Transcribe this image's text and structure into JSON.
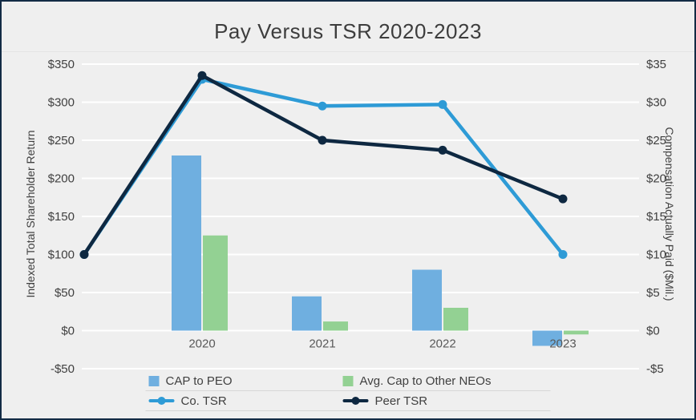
{
  "title": "Pay Versus TSR 2020-2023",
  "left_axis": {
    "label": "Indexed Total Shareholder Return",
    "ticks": [
      "$350",
      "$300",
      "$250",
      "$200",
      "$150",
      "$100",
      "$50",
      "$0",
      "-$50"
    ],
    "min": -50,
    "max": 350,
    "step": 50
  },
  "right_axis": {
    "label": "Compensation Actually Paid ($Mil.)",
    "ticks": [
      "$35",
      "$30",
      "$25",
      "$20",
      "$15",
      "$10",
      "$5",
      "$0",
      "-$5"
    ],
    "min": -5,
    "max": 35,
    "step": 5
  },
  "chart_data": {
    "type": "combo",
    "categories": [
      "2020",
      "2021",
      "2022",
      "2023"
    ],
    "bar_series": [
      {
        "name": "CAP to PEO",
        "axis": "right",
        "color": "#6fafe0",
        "values": [
          23,
          4.5,
          8,
          -2
        ]
      },
      {
        "name": "Avg. Cap to Other NEOs",
        "axis": "right",
        "color": "#93d193",
        "values": [
          12.5,
          1.2,
          3,
          -0.5
        ]
      }
    ],
    "line_series": [
      {
        "name": "Co. TSR",
        "axis": "left",
        "color": "#2e9bd6",
        "baseline_value": 100,
        "values": [
          330,
          295,
          297,
          100
        ]
      },
      {
        "name": "Peer TSR",
        "axis": "left",
        "color": "#0e2841",
        "baseline_value": 100,
        "values": [
          335,
          250,
          237,
          173
        ]
      }
    ],
    "grid": true,
    "gridline_color": "#ffffff",
    "background_color": "#efefef",
    "border_color": "#122b45",
    "legend_position": "bottom",
    "xlim_note": "lines start at a baseline point of 100 at the left plot edge (pre-2020)",
    "left_ylim": [
      -50,
      350
    ],
    "right_ylim": [
      -5,
      35
    ]
  }
}
